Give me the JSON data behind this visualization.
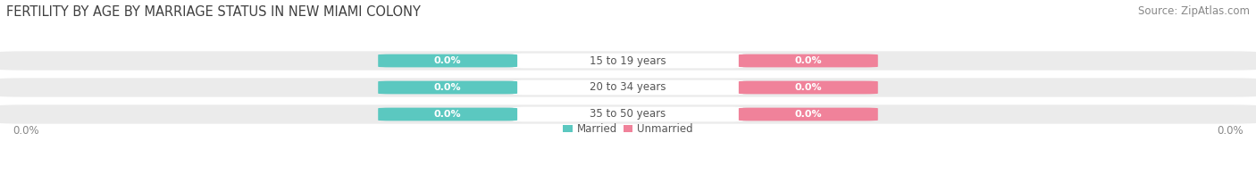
{
  "title": "FERTILITY BY AGE BY MARRIAGE STATUS IN NEW MIAMI COLONY",
  "source_text": "Source: ZipAtlas.com",
  "categories": [
    "15 to 19 years",
    "20 to 34 years",
    "35 to 50 years"
  ],
  "married_values": [
    0.0,
    0.0,
    0.0
  ],
  "unmarried_values": [
    0.0,
    0.0,
    0.0
  ],
  "married_color": "#5bc8c0",
  "unmarried_color": "#f0829a",
  "bar_bg_color": "#ebebeb",
  "bar_height": 0.62,
  "title_fontsize": 10.5,
  "source_fontsize": 8.5,
  "label_fontsize": 8.5,
  "value_fontsize": 8,
  "tick_label_fontsize": 8.5,
  "background_color": "#ffffff",
  "axis_label_left": "0.0%",
  "axis_label_right": "0.0%",
  "legend_labels": [
    "Married",
    "Unmarried"
  ],
  "title_color": "#404040",
  "source_color": "#888888",
  "label_color": "#555555",
  "axis_label_color": "#888888"
}
